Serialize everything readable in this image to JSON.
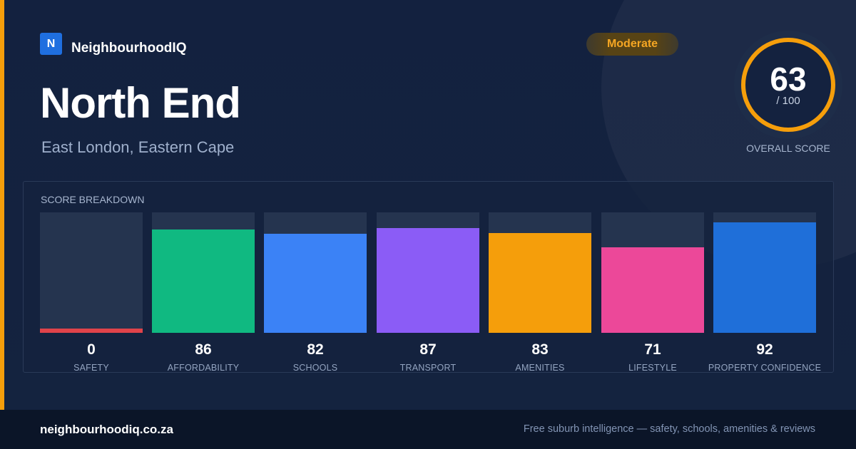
{
  "brand": {
    "logo_letter": "N",
    "name": "NeighbourhoodIQ"
  },
  "location": {
    "title": "North End",
    "subtitle": "East London, Eastern Cape"
  },
  "rating": {
    "badge": "Moderate"
  },
  "overall": {
    "score": "63",
    "out_of": "/ 100",
    "label": "OVERALL SCORE",
    "fraction": 0.63
  },
  "colors": {
    "accent": "#f59e0b",
    "ring_track": "#24324d"
  },
  "breakdown": {
    "title": "SCORE BREAKDOWN",
    "items": [
      {
        "label": "SAFETY",
        "value": "0",
        "color": "#e0434a"
      },
      {
        "label": "AFFORDABILITY",
        "value": "86",
        "color": "#10b981"
      },
      {
        "label": "SCHOOLS",
        "value": "82",
        "color": "#3b82f6"
      },
      {
        "label": "TRANSPORT",
        "value": "87",
        "color": "#8b5cf6"
      },
      {
        "label": "AMENITIES",
        "value": "83",
        "color": "#f59e0b"
      },
      {
        "label": "LIFESTYLE",
        "value": "71",
        "color": "#ec4899"
      },
      {
        "label": "PROPERTY CONFIDENCE",
        "value": "92",
        "color": "#1f6fd9"
      }
    ]
  },
  "footer": {
    "url": "neighbourhoodiq.co.za",
    "tagline": "Free suburb intelligence — safety, schools, amenities & reviews"
  }
}
